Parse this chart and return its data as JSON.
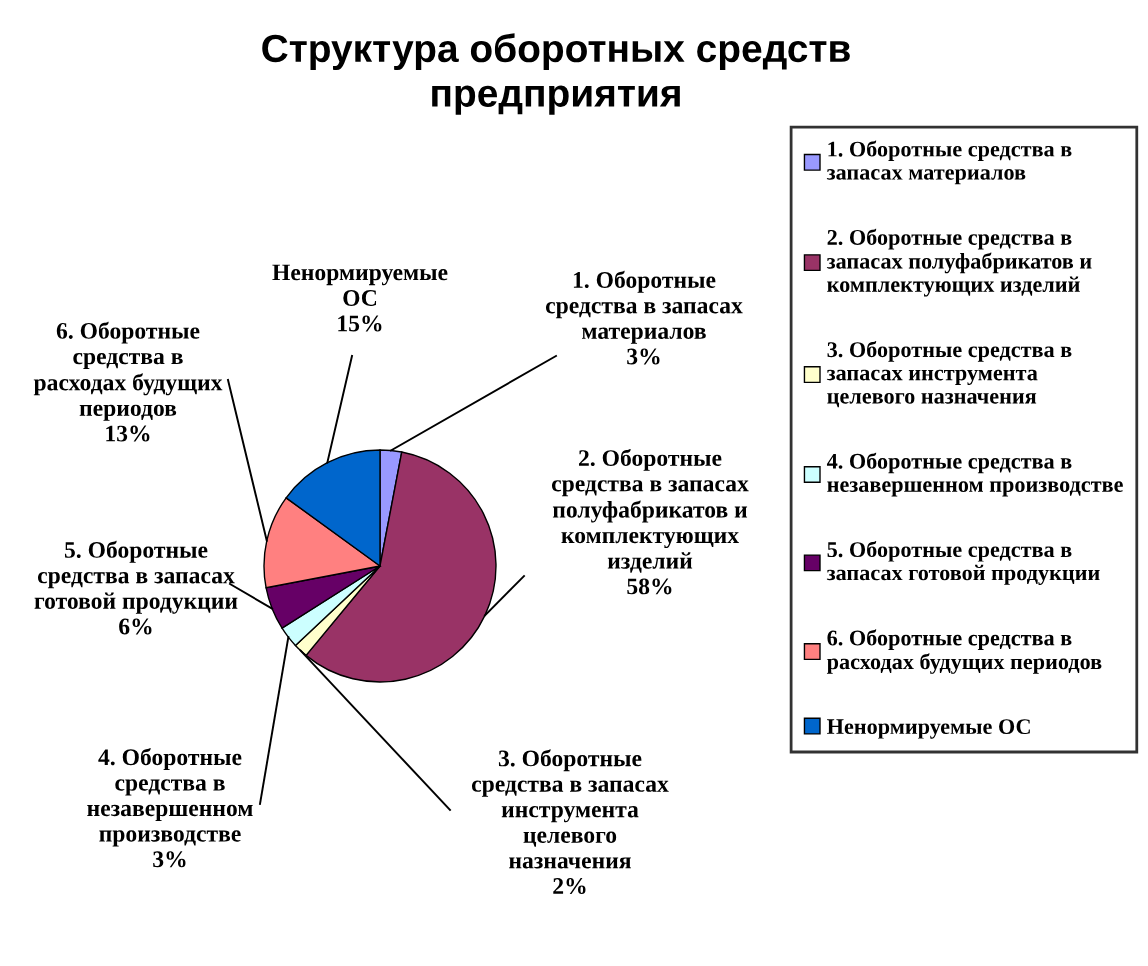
{
  "chart_data": {
    "type": "pie",
    "title": "Структура оборотных средств предприятия",
    "categories": [
      "1. Оборотные средства в запасах материалов",
      "2. Оборотные средства в запасах полуфабрикатов и комплектующих изделий",
      "3. Оборотные средства в запасах инструмента целевого назначения",
      "4. Оборотные средства в незавершенном производстве",
      "5. Оборотные средства в запасах готовой продукции",
      "6. Оборотные средства в расходах будущих периодов",
      "Ненормируемые ОС"
    ],
    "values": [
      3,
      58,
      2,
      3,
      6,
      13,
      15
    ],
    "value_labels": [
      "3%",
      "58%",
      "2%",
      "3%",
      "6%",
      "13%",
      "15%"
    ],
    "colors": [
      "#9999ff",
      "#993366",
      "#ffffcc",
      "#ccffff",
      "#660066",
      "#ff8080",
      "#0066cc"
    ],
    "legend": "right"
  }
}
